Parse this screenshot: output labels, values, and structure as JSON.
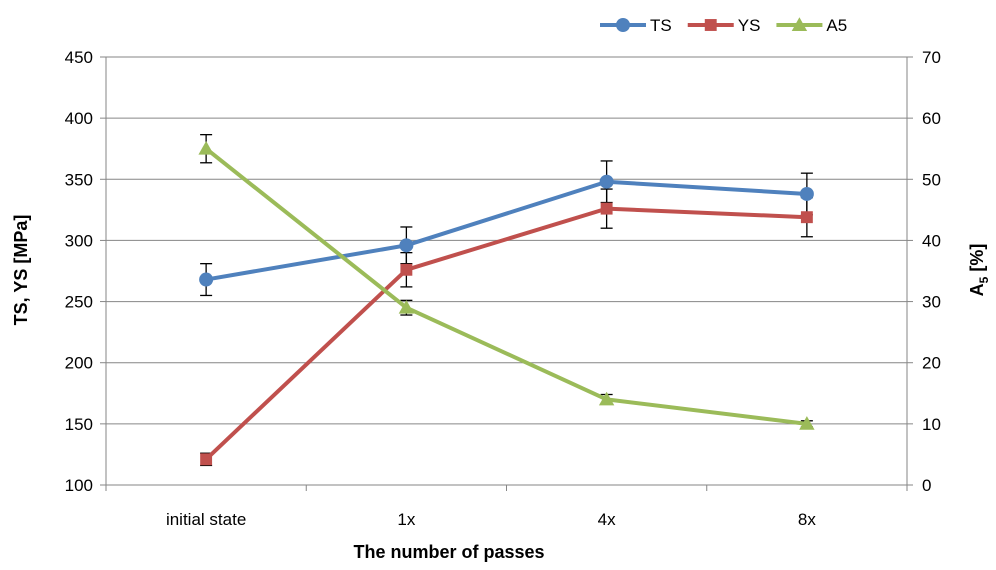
{
  "chart_data": {
    "type": "line",
    "xlabel": "The number of passes",
    "ylabel_left": "TS, YS [MPa]",
    "ylabel_right": "A5 [%]",
    "ylabel_right_base": "A",
    "ylabel_right_sub": "5",
    "ylabel_right_rest": " [%]",
    "categories": [
      "initial state",
      "1x",
      "4x",
      "8x"
    ],
    "ylim_left": [
      100,
      450
    ],
    "yticks_left": [
      100,
      150,
      200,
      250,
      300,
      350,
      400,
      450
    ],
    "ylim_right": [
      0,
      70
    ],
    "yticks_right": [
      0,
      10,
      20,
      30,
      40,
      50,
      60,
      70
    ],
    "grid": "horizontal",
    "legend_position": "top-right",
    "series": [
      {
        "name": "TS",
        "axis": "left",
        "color": "#4F81BD",
        "marker": "circle",
        "values": [
          268,
          296,
          348,
          338
        ],
        "errors": [
          13,
          15,
          17,
          17
        ]
      },
      {
        "name": "YS",
        "axis": "left",
        "color": "#C0504D",
        "marker": "square",
        "values": [
          121,
          276,
          326,
          319
        ],
        "errors": [
          5,
          14,
          16,
          16
        ]
      },
      {
        "name": "A5",
        "axis": "right",
        "color": "#9BBB59",
        "marker": "triangle",
        "values": [
          55,
          29,
          14,
          10
        ],
        "errors": [
          2.3,
          1.2,
          0.8,
          0.5
        ]
      }
    ]
  }
}
